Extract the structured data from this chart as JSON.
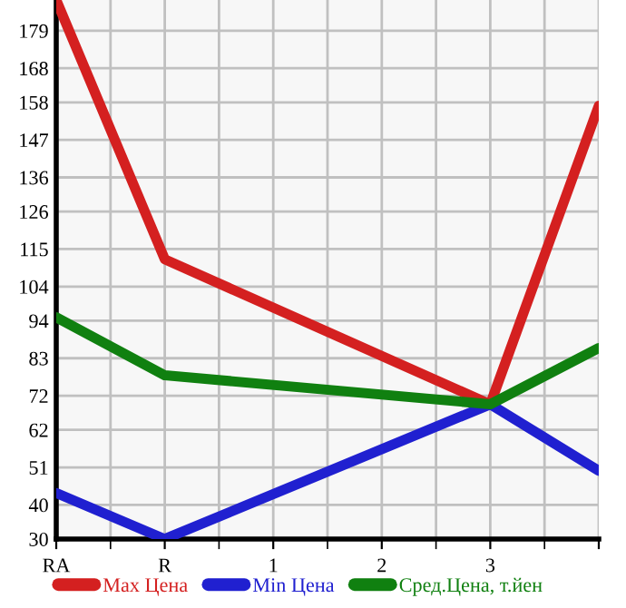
{
  "chart_data": {
    "type": "line",
    "categories": [
      "RA",
      "R",
      "1",
      "2",
      "3",
      null
    ],
    "series": [
      {
        "name": "Max Цена",
        "color": "#d42020",
        "values": [
          188,
          112,
          null,
          null,
          69.5,
          157
        ]
      },
      {
        "name": "Min Цена",
        "color": "#2020d0",
        "values": [
          43.5,
          30,
          null,
          null,
          69.5,
          50
        ]
      },
      {
        "name": "Сред.Цена, т.йен",
        "color": "#108010",
        "values": [
          95,
          78,
          null,
          null,
          69.5,
          86
        ]
      }
    ],
    "ylim": [
      30,
      188
    ],
    "yticks": [
      30,
      40,
      51,
      62,
      72,
      83,
      94,
      104,
      115,
      126,
      136,
      147,
      158,
      168,
      179
    ],
    "grid": true,
    "legend": "bottom",
    "marker": "none",
    "line_style": "solid"
  }
}
